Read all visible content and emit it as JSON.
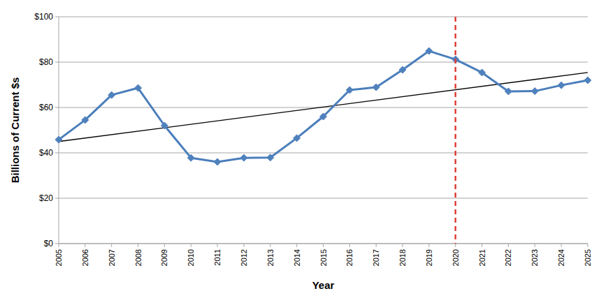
{
  "chart_data": {
    "type": "line",
    "x_label": "Year",
    "y_label": "Billions of Current $s",
    "x": [
      2005,
      2006,
      2007,
      2008,
      2009,
      2010,
      2011,
      2012,
      2013,
      2014,
      2015,
      2016,
      2017,
      2018,
      2019,
      2020,
      2021,
      2022,
      2023,
      2024,
      2025
    ],
    "series": [
      {
        "color": "#4a7ebb",
        "marker": "diamond",
        "line_style": "solid",
        "values": [
          45.8,
          54.5,
          65.5,
          68.6,
          52,
          37.8,
          36,
          37.8,
          37.9,
          46.5,
          56,
          67.7,
          68.9,
          76.6,
          84.9,
          81.2,
          75.4,
          67.1,
          67.2,
          69.8,
          72
        ]
      }
    ],
    "trend": {
      "x": [
        2005,
        2025
      ],
      "values": [
        45,
        75.4
      ],
      "color": "#000000",
      "line_style": "solid"
    },
    "vline": {
      "x": 2020,
      "color": "#e0403a",
      "line_style": "dashed"
    },
    "xlim": [
      2005,
      2025
    ],
    "xticks": [
      2005,
      2006,
      2007,
      2008,
      2009,
      2010,
      2011,
      2012,
      2013,
      2014,
      2015,
      2016,
      2017,
      2018,
      2019,
      2020,
      2021,
      2022,
      2023,
      2024,
      2025
    ],
    "ylim": [
      0,
      100
    ],
    "yticks": [
      {
        "value": 0,
        "label": "$0"
      },
      {
        "value": 20,
        "label": "$20"
      },
      {
        "value": 40,
        "label": "$40"
      },
      {
        "value": 60,
        "label": "$60"
      },
      {
        "value": 80,
        "label": "$80"
      },
      {
        "value": 100,
        "label": "$100"
      }
    ],
    "grid": true
  }
}
